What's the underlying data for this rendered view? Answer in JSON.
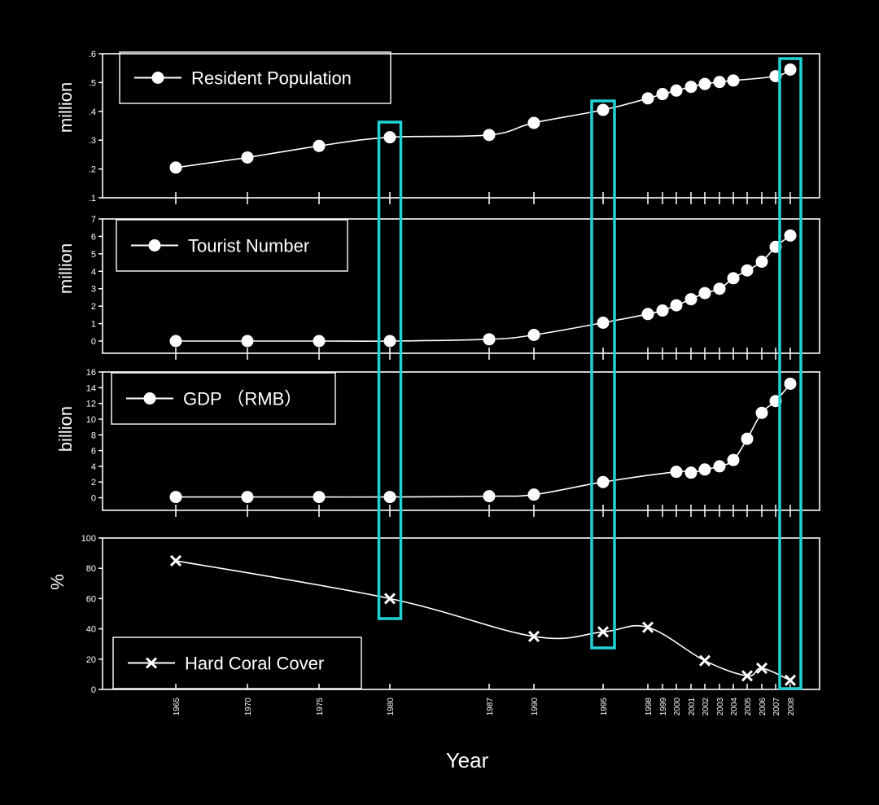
{
  "chart_data": [
    {
      "type": "line",
      "name": "population",
      "ylabel": "million",
      "legend": "Resident Population",
      "marker": "circle",
      "ylim": [
        0.1,
        0.6
      ],
      "yticks": [
        0.1,
        0.2,
        0.3,
        0.4,
        0.5,
        0.6
      ],
      "ytick_labels": [
        ".1",
        ".2",
        ".3",
        ".4",
        ".5",
        ".6"
      ],
      "points": [
        [
          1965,
          0.205
        ],
        [
          1970,
          0.24
        ],
        [
          1975,
          0.28
        ],
        [
          1980,
          0.31
        ],
        [
          1987,
          0.318
        ],
        [
          1990,
          0.36
        ],
        [
          1995,
          0.405
        ],
        [
          1998,
          0.445
        ],
        [
          1999,
          0.46
        ],
        [
          2000,
          0.472
        ],
        [
          2001,
          0.485
        ],
        [
          2002,
          0.495
        ],
        [
          2003,
          0.502
        ],
        [
          2004,
          0.507
        ],
        [
          2007,
          0.522
        ],
        [
          2008,
          0.545
        ]
      ]
    },
    {
      "type": "line",
      "name": "tourist",
      "ylabel": "million",
      "legend": "Tourist Number",
      "marker": "circle",
      "ylim": [
        -0.7,
        7
      ],
      "yticks": [
        0,
        1,
        2,
        3,
        4,
        5,
        6,
        7
      ],
      "ytick_labels": [
        "0",
        "1",
        "2",
        "3",
        "4",
        "5",
        "6",
        "7"
      ],
      "points": [
        [
          1965,
          0
        ],
        [
          1970,
          0
        ],
        [
          1975,
          0
        ],
        [
          1980,
          0
        ],
        [
          1987,
          0.1
        ],
        [
          1990,
          0.35
        ],
        [
          1995,
          1.05
        ],
        [
          1998,
          1.55
        ],
        [
          1999,
          1.75
        ],
        [
          2000,
          2.05
        ],
        [
          2001,
          2.4
        ],
        [
          2002,
          2.75
        ],
        [
          2003,
          3.0
        ],
        [
          2004,
          3.6
        ],
        [
          2005,
          4.05
        ],
        [
          2006,
          4.55
        ],
        [
          2007,
          5.4
        ],
        [
          2008,
          6.05
        ]
      ]
    },
    {
      "type": "line",
      "name": "gdp",
      "ylabel": "billion",
      "legend": "GDP （RMB）",
      "marker": "circle",
      "ylim": [
        -1.6,
        16
      ],
      "yticks": [
        0,
        2,
        4,
        6,
        8,
        10,
        12,
        14,
        16
      ],
      "ytick_labels": [
        "0",
        "2",
        "4",
        "6",
        "8",
        "10",
        "12",
        "14",
        "16"
      ],
      "points": [
        [
          1965,
          0.1
        ],
        [
          1970,
          0.1
        ],
        [
          1975,
          0.1
        ],
        [
          1980,
          0.1
        ],
        [
          1987,
          0.2
        ],
        [
          1990,
          0.4
        ],
        [
          1995,
          2.0
        ],
        [
          2000,
          3.3
        ],
        [
          2001,
          3.2
        ],
        [
          2002,
          3.6
        ],
        [
          2003,
          4.0
        ],
        [
          2004,
          4.8
        ],
        [
          2005,
          7.5
        ],
        [
          2006,
          10.8
        ],
        [
          2007,
          12.3
        ],
        [
          2008,
          14.5
        ]
      ]
    },
    {
      "type": "line",
      "name": "coral",
      "ylabel": "%",
      "legend": "Hard Coral Cover",
      "marker": "x",
      "ylim": [
        0,
        100
      ],
      "yticks": [
        0,
        20,
        40,
        60,
        80,
        100
      ],
      "ytick_labels": [
        "0",
        "20",
        "40",
        "60",
        "80",
        "100"
      ],
      "points": [
        [
          1965,
          85
        ],
        [
          1980,
          60
        ],
        [
          1990,
          35
        ],
        [
          1995,
          38
        ],
        [
          1998,
          41
        ],
        [
          2002,
          19
        ],
        [
          2005,
          9
        ],
        [
          2006,
          14
        ],
        [
          2008,
          6
        ]
      ]
    }
  ],
  "x_ticks": [
    "1965",
    "1970",
    "1975",
    "1980",
    "1987",
    "1990",
    "1995",
    "1998",
    "1999",
    "2000",
    "2001",
    "2002",
    "2003",
    "2004",
    "2005",
    "2006",
    "2007",
    "2008"
  ],
  "xlabel": "Year",
  "highlight_years": [
    "1980",
    "1995",
    "2008"
  ],
  "colors": {
    "background": "#000000",
    "line": "#ffffff",
    "highlight": "#22d3d6"
  }
}
